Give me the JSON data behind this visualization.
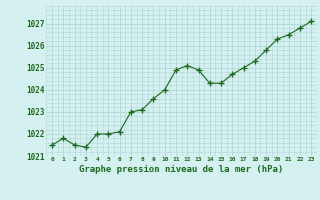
{
  "x": [
    0,
    1,
    2,
    3,
    4,
    5,
    6,
    7,
    8,
    9,
    10,
    11,
    12,
    13,
    14,
    15,
    16,
    17,
    18,
    19,
    20,
    21,
    22,
    23
  ],
  "y": [
    1021.5,
    1021.8,
    1021.5,
    1021.4,
    1022.0,
    1022.0,
    1022.1,
    1023.0,
    1023.1,
    1023.6,
    1024.0,
    1024.9,
    1025.1,
    1024.9,
    1024.3,
    1024.3,
    1024.7,
    1025.0,
    1025.3,
    1025.8,
    1026.3,
    1026.5,
    1026.8,
    1027.1
  ],
  "line_color": "#1a6b1a",
  "marker_color": "#1a6b1a",
  "bg_color": "#d5f0f0",
  "grid_color": "#b0d8d8",
  "xlabel": "Graphe pression niveau de la mer (hPa)",
  "xlabel_color": "#1a6b1a",
  "tick_color": "#1a6b1a",
  "ylim": [
    1021.0,
    1027.5
  ],
  "yticks": [
    1021,
    1022,
    1023,
    1024,
    1025,
    1026,
    1027
  ],
  "xticks": [
    0,
    1,
    2,
    3,
    4,
    5,
    6,
    7,
    8,
    9,
    10,
    11,
    12,
    13,
    14,
    15,
    16,
    17,
    18,
    19,
    20,
    21,
    22,
    23
  ],
  "xtick_labels": [
    "0",
    "1",
    "2",
    "3",
    "4",
    "5",
    "6",
    "7",
    "8",
    "9",
    "10",
    "11",
    "12",
    "13",
    "14",
    "15",
    "16",
    "17",
    "18",
    "19",
    "20",
    "21",
    "22",
    "23"
  ]
}
